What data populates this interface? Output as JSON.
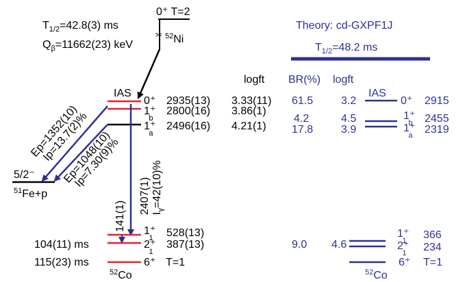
{
  "parent": {
    "spin_iso": "0⁺ T=2",
    "nucleus_mass": "52",
    "nucleus_symbol": "Ni",
    "half_life_base": "T",
    "half_life_sub": "1/2",
    "half_life_val": "=42.8(3) ms",
    "qbeta_base": "Q",
    "qbeta_sub": "β",
    "qbeta_val": "=11662(23) keV"
  },
  "experiment": {
    "logft_header": "logft",
    "ias_label": "IAS",
    "levels": [
      {
        "spin": "0⁺",
        "energy": "2935(13)",
        "logft": "3.33(11)"
      },
      {
        "spin_base": "1⁺",
        "spin_sub": "b",
        "energy": "2800(16)",
        "logft": "3.86(1)"
      },
      {
        "spin_base": "1⁺",
        "spin_sub": "a",
        "energy": "2496(16)",
        "logft": "4.21(1)"
      }
    ],
    "low_levels": [
      {
        "spin_base": "1⁺",
        "spin_sub": "1",
        "energy": "528(13)"
      },
      {
        "spin_base": "2⁺",
        "spin_sub": "1",
        "energy": "387(13)",
        "half_life": "104(11) ms"
      },
      {
        "spin": "6⁺",
        "isospin": "T=1",
        "half_life": "115(23) ms"
      }
    ],
    "daughter_mass": "52",
    "daughter_symbol": "Co",
    "proton_branch_1": {
      "energy": "Ep=1352(10)",
      "intensity": "Ip=13.7(2)%"
    },
    "proton_branch_2": {
      "energy": "Ep=1048(10)",
      "intensity": "Ip=7.30(9)%"
    },
    "proton_final_spin": "5/2⁻",
    "proton_final_mass": "51",
    "proton_final_nucleus": "Fe+p",
    "gamma_1": {
      "energy": "2407(1)",
      "intensity_base": "I",
      "intensity_sub": "γ",
      "intensity_val": "=42(10)%"
    },
    "gamma_2": {
      "energy": "141(1)"
    }
  },
  "theory": {
    "title": "Theory: cd-GXPF1J",
    "half_life_base": "T",
    "half_life_sub": "1/2",
    "half_life_val": "=48.2 ms",
    "br_header": "BR(%)",
    "logft_header": "logft",
    "ias_label": "IAS",
    "levels": [
      {
        "br": "61.5",
        "logft": "3.2",
        "spin": "0⁺",
        "energy": "2915"
      },
      {
        "br": "4.2",
        "logft": "4.5",
        "spin_base": "1⁺",
        "spin_sub": "b",
        "energy": "2455"
      },
      {
        "br": "17.8",
        "logft": "3.9",
        "spin_base": "1⁺",
        "spin_sub": "a",
        "energy": "2319"
      }
    ],
    "low_levels": [
      {
        "spin_base": "1⁺",
        "spin_sub": "1",
        "energy": "366"
      },
      {
        "spin_base": "2⁺",
        "spin_sub": "1",
        "energy": "234",
        "br": "9.0",
        "logft": "4.6"
      },
      {
        "spin": "6⁺",
        "isospin": "T=1"
      }
    ],
    "daughter_mass": "52",
    "daughter_symbol": "Co"
  },
  "colors": {
    "theory": "#2e3192",
    "arrow_blue": "#2e3192",
    "level_red": "#e8202a",
    "black": "#000000"
  }
}
